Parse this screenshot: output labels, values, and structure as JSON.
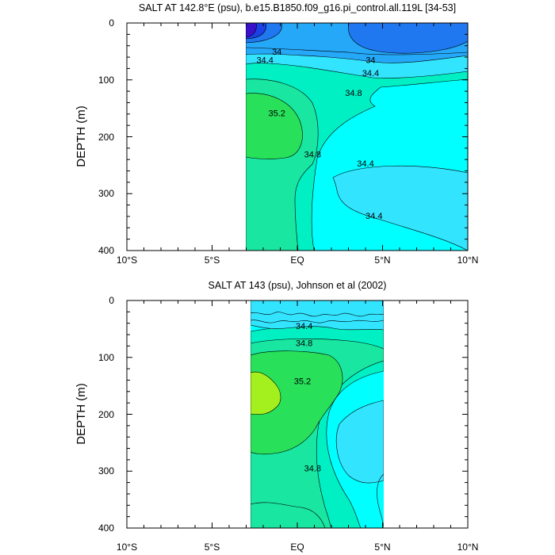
{
  "colors": {
    "fresh_purple": "#3a10c8",
    "blue_3": "#1a40e6",
    "blue_2": "#1f78f0",
    "blue_1": "#25a8f8",
    "cyan_light": "#33e4ff",
    "cyan": "#00ffff",
    "aqua_green": "#00f0c4",
    "mint": "#19e6a0",
    "green": "#28e05a",
    "yellow_green": "#a4ef1e",
    "contour_line": "#000000"
  },
  "chart_data": [
    {
      "type": "contour",
      "title": "SALT AT 142.8°E (psu), b.e15.B1850.f09_g16.pi_control.all.119L [34-53]",
      "ylabel": "DEPTH (m)",
      "xlabel": "",
      "xlim": [
        -10,
        10
      ],
      "ylim": [
        400,
        0
      ],
      "x_ticks": [
        -10,
        -5,
        0,
        5,
        10
      ],
      "x_tick_labels": [
        "10°S",
        "5°S",
        "EQ",
        "5°N",
        "10°N"
      ],
      "y_ticks": [
        0,
        100,
        200,
        300,
        400
      ],
      "y_tick_labels": [
        "0",
        "100",
        "200",
        "300",
        "400"
      ],
      "data_extent_lat": [
        -3,
        10
      ],
      "contour_labels": [
        {
          "text": "34",
          "lat": -1.2,
          "depth": 52
        },
        {
          "text": "34.4",
          "lat": -1.9,
          "depth": 66
        },
        {
          "text": "34",
          "lat": 4.3,
          "depth": 66
        },
        {
          "text": "34.4",
          "lat": 4.3,
          "depth": 89
        },
        {
          "text": "34.8",
          "lat": 3.3,
          "depth": 124
        },
        {
          "text": "35.2",
          "lat": -1.2,
          "depth": 160
        },
        {
          "text": "34.8",
          "lat": 0.9,
          "depth": 232
        },
        {
          "text": "34.4",
          "lat": 4.0,
          "depth": 248
        },
        {
          "text": "34.4",
          "lat": 4.5,
          "depth": 340
        }
      ]
    },
    {
      "type": "contour",
      "title": "SALT AT 143 (psu), Johnson et al (2002)",
      "ylabel": "DEPTH (m)",
      "xlabel": "",
      "xlim": [
        -10,
        10
      ],
      "ylim": [
        400,
        0
      ],
      "x_ticks": [
        -10,
        -5,
        0,
        5,
        10
      ],
      "x_tick_labels": [
        "10°S",
        "5°S",
        "EQ",
        "5°N",
        "10°N"
      ],
      "y_ticks": [
        0,
        100,
        200,
        300,
        400
      ],
      "y_tick_labels": [
        "0",
        "100",
        "200",
        "300",
        "400"
      ],
      "data_extent_lat": [
        -2.8,
        5
      ],
      "contour_labels": [
        {
          "text": "34.4",
          "lat": 0.4,
          "depth": 46
        },
        {
          "text": "34.8",
          "lat": 0.4,
          "depth": 76
        },
        {
          "text": "35.2",
          "lat": 0.3,
          "depth": 143
        },
        {
          "text": "34.8",
          "lat": 0.9,
          "depth": 296
        }
      ]
    }
  ]
}
